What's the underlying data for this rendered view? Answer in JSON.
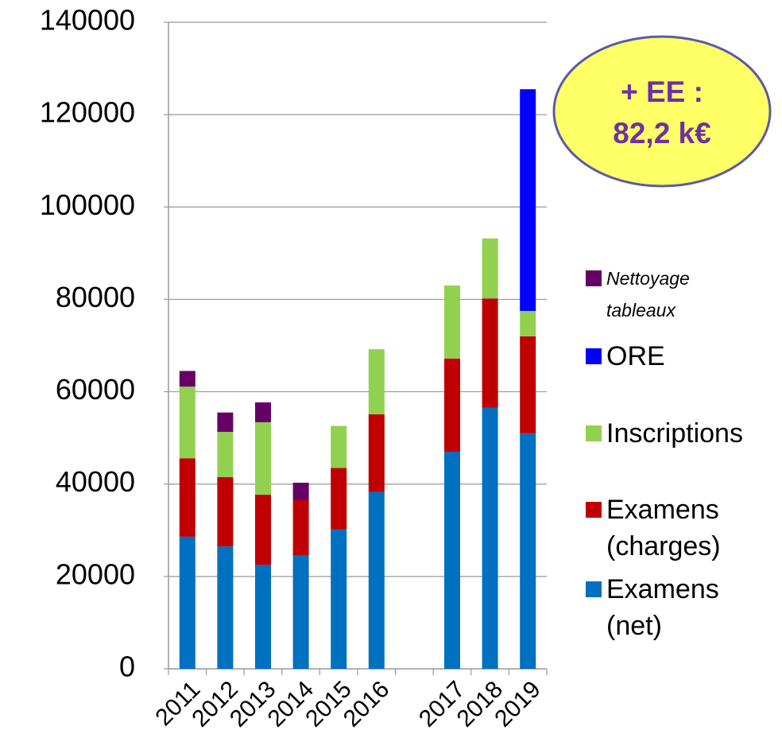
{
  "chart_data": {
    "type": "stacked_bar",
    "categories": [
      "2011",
      "2012",
      "2013",
      "2014",
      "2015",
      "2016",
      null,
      "2017",
      "2018",
      "2019"
    ],
    "series": [
      {
        "name": "Examens (net)",
        "color": "#0070c0",
        "values": [
          28600,
          26500,
          22500,
          24500,
          30200,
          38300,
          null,
          47000,
          56500,
          51000
        ]
      },
      {
        "name": "Examens (charges)",
        "color": "#c00000",
        "values": [
          17000,
          15000,
          15200,
          12000,
          13300,
          16800,
          null,
          20200,
          23700,
          21000
        ]
      },
      {
        "name": "Inscriptions",
        "color": "#92d050",
        "values": [
          15500,
          9800,
          15700,
          0,
          9100,
          14100,
          null,
          15800,
          13000,
          5500
        ]
      },
      {
        "name": "ORE",
        "color": "#0000ff",
        "values": [
          0,
          0,
          0,
          0,
          0,
          0,
          null,
          0,
          0,
          48000
        ]
      },
      {
        "name": "Nettoyage tableaux",
        "color": "#660066",
        "values": [
          3400,
          4200,
          4300,
          3800,
          0,
          0,
          null,
          0,
          0,
          0
        ]
      }
    ],
    "annotation": "+ EE : 82,2 k€",
    "ylim": [
      0,
      140000
    ],
    "yticks": [
      0,
      20000,
      40000,
      60000,
      80000,
      100000,
      120000,
      140000
    ],
    "grid": true,
    "legend": "right"
  }
}
